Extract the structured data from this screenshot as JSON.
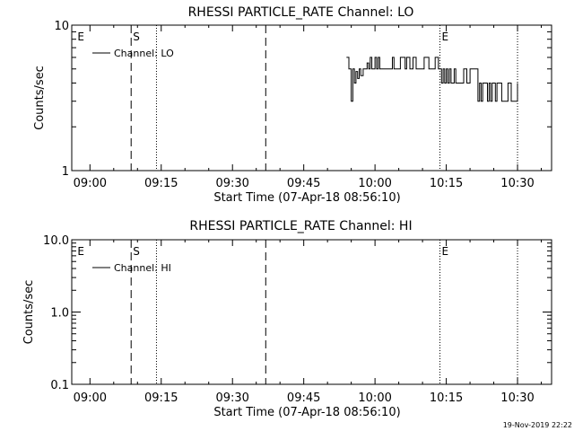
{
  "footer": {
    "timestamp": "19-Nov-2019 22:22"
  },
  "chart_data": [
    {
      "type": "line",
      "title": "RHESSI PARTICLE_RATE Channel: LO",
      "xlabel": "Start Time (07-Apr-18 08:56:10)",
      "ylabel": "Counts/sec",
      "yscale": "log",
      "xlim": [
        "08:56:10",
        "10:37:10"
      ],
      "ylim": [
        1,
        10
      ],
      "xticks": [
        "09:00",
        "09:15",
        "09:30",
        "09:45",
        "10:00",
        "10:15",
        "10:30"
      ],
      "yticks": [
        {
          "value": 1,
          "label": "1"
        },
        {
          "value": 10,
          "label": "10"
        }
      ],
      "legend": {
        "position": "top-left",
        "entries": [
          "Channel: LO"
        ]
      },
      "grid": false,
      "markers": [
        {
          "time": "08:57:00",
          "style": "none",
          "label": "E"
        },
        {
          "time": "09:08:40",
          "style": "dashed",
          "label": "S"
        },
        {
          "time": "09:14:00",
          "style": "dotted",
          "label": ""
        },
        {
          "time": "09:37:00",
          "style": "dashed",
          "label": ""
        },
        {
          "time": "10:13:40",
          "style": "dotted",
          "label": "E"
        },
        {
          "time": "10:30:00",
          "style": "dotted",
          "label": ""
        }
      ],
      "series": [
        {
          "name": "Channel: LO",
          "x": [
            "09:54:00",
            "09:54:30",
            "09:55:00",
            "09:55:20",
            "09:55:40",
            "09:56:00",
            "09:56:20",
            "09:56:40",
            "09:57:00",
            "09:57:30",
            "09:58:00",
            "09:58:20",
            "09:58:40",
            "09:59:00",
            "09:59:20",
            "09:59:40",
            "10:00:00",
            "10:00:20",
            "10:00:40",
            "10:01:00",
            "10:01:20",
            "10:01:40",
            "10:02:00",
            "10:02:20",
            "10:02:40",
            "10:03:00",
            "10:03:20",
            "10:03:40",
            "10:04:00",
            "10:04:20",
            "10:04:40",
            "10:05:00",
            "10:05:20",
            "10:05:40",
            "10:06:00",
            "10:06:20",
            "10:06:40",
            "10:07:00",
            "10:07:20",
            "10:07:40",
            "10:08:00",
            "10:08:20",
            "10:08:40",
            "10:09:00",
            "10:09:20",
            "10:09:40",
            "10:10:00",
            "10:10:20",
            "10:10:40",
            "10:11:00",
            "10:11:20",
            "10:11:40",
            "10:12:00",
            "10:12:20",
            "10:12:40",
            "10:13:00",
            "10:13:20",
            "10:13:40",
            "10:14:00",
            "10:14:20",
            "10:14:40",
            "10:15:00",
            "10:15:20",
            "10:15:40",
            "10:16:00",
            "10:16:20",
            "10:16:40",
            "10:17:00",
            "10:17:20",
            "10:17:40",
            "10:18:00",
            "10:18:20",
            "10:18:40",
            "10:19:00",
            "10:19:20",
            "10:19:40",
            "10:20:00",
            "10:20:20",
            "10:20:40",
            "10:21:00",
            "10:21:20",
            "10:21:40",
            "10:22:00",
            "10:22:20",
            "10:22:40",
            "10:23:00",
            "10:23:20",
            "10:23:40",
            "10:24:00",
            "10:24:20",
            "10:24:40",
            "10:25:00",
            "10:25:20",
            "10:25:40",
            "10:26:00",
            "10:26:20",
            "10:26:40",
            "10:27:00",
            "10:27:20",
            "10:27:40",
            "10:28:00",
            "10:28:20",
            "10:28:40",
            "10:29:00",
            "10:29:20",
            "10:29:40",
            "10:30:00"
          ],
          "y": [
            6.0,
            5.0,
            3.0,
            5.0,
            4.0,
            4.8,
            4.3,
            5.0,
            4.5,
            5.0,
            5.0,
            5.5,
            5.0,
            6.0,
            5.0,
            5.0,
            6.0,
            5.0,
            6.0,
            5.0,
            5.0,
            5.0,
            5.0,
            5.0,
            5.0,
            5.0,
            5.0,
            6.0,
            5.0,
            5.0,
            5.0,
            5.0,
            6.0,
            6.0,
            6.0,
            5.0,
            6.0,
            6.0,
            5.0,
            5.0,
            6.0,
            6.0,
            5.0,
            5.0,
            5.0,
            5.0,
            5.0,
            6.0,
            6.0,
            6.0,
            5.0,
            5.0,
            5.0,
            5.0,
            6.0,
            6.0,
            5.0,
            5.0,
            4.0,
            5.0,
            4.0,
            5.0,
            4.0,
            5.0,
            4.0,
            4.0,
            5.0,
            4.0,
            4.0,
            4.0,
            4.0,
            4.0,
            5.0,
            5.0,
            4.0,
            4.0,
            5.0,
            5.0,
            5.0,
            5.0,
            5.0,
            3.0,
            4.0,
            3.0,
            4.0,
            4.0,
            4.0,
            3.0,
            4.0,
            3.0,
            4.0,
            4.0,
            3.0,
            4.0,
            4.0,
            4.0,
            3.0,
            3.0,
            3.0,
            3.0,
            4.0,
            4.0,
            3.0,
            3.0,
            3.0,
            3.0,
            4.0
          ]
        }
      ]
    },
    {
      "type": "line",
      "title": "RHESSI PARTICLE_RATE Channel: HI",
      "xlabel": "Start Time (07-Apr-18 08:56:10)",
      "ylabel": "Counts/sec",
      "yscale": "log",
      "xlim": [
        "08:56:10",
        "10:37:10"
      ],
      "ylim": [
        0.1,
        10
      ],
      "xticks": [
        "09:00",
        "09:15",
        "09:30",
        "09:45",
        "10:00",
        "10:15",
        "10:30"
      ],
      "yticks": [
        {
          "value": 0.1,
          "label": "0.1"
        },
        {
          "value": 1,
          "label": "1.0"
        },
        {
          "value": 10,
          "label": "10.0"
        }
      ],
      "legend": {
        "position": "top-left",
        "entries": [
          "Channel: HI"
        ]
      },
      "grid": false,
      "markers": [
        {
          "time": "08:57:00",
          "style": "none",
          "label": "E"
        },
        {
          "time": "09:08:40",
          "style": "dashed",
          "label": "S"
        },
        {
          "time": "09:14:00",
          "style": "dotted",
          "label": ""
        },
        {
          "time": "09:37:00",
          "style": "dashed",
          "label": ""
        },
        {
          "time": "10:13:40",
          "style": "dotted",
          "label": "E"
        },
        {
          "time": "10:30:00",
          "style": "dotted",
          "label": ""
        }
      ],
      "series": [
        {
          "name": "Channel: HI",
          "x": [],
          "y": []
        }
      ]
    }
  ]
}
